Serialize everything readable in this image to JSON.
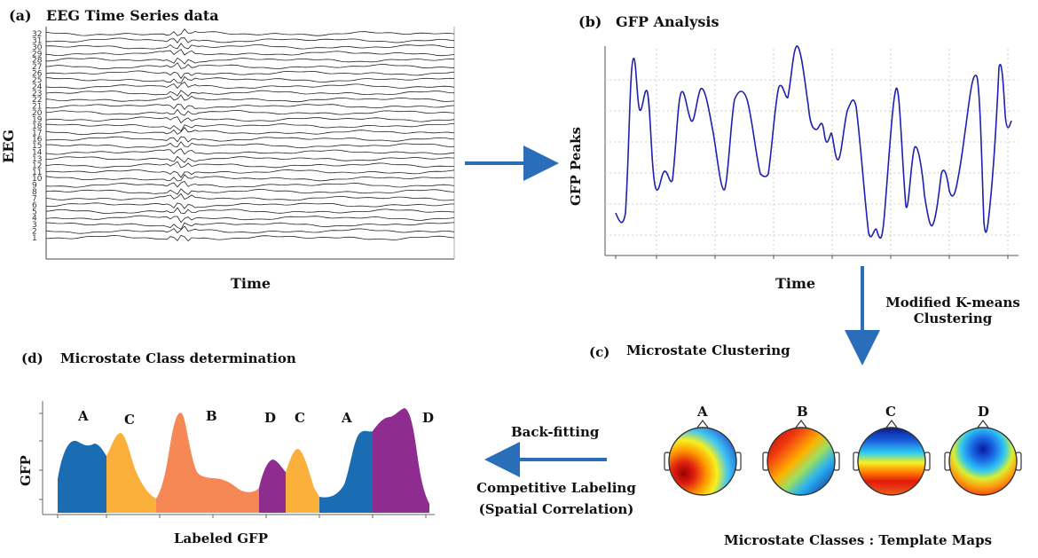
{
  "panel_a": {
    "label": "(a)",
    "title": "EEG Time Series data",
    "ylabel": "EEG",
    "xlabel": "Time",
    "channels": [
      "32",
      "31",
      "30",
      "29",
      "28",
      "27",
      "26",
      "25",
      "24",
      "23",
      "22",
      "21",
      "20",
      "19",
      "18",
      "17",
      "16",
      "15",
      "14",
      "13",
      "12",
      "11",
      "10",
      "9",
      "8",
      "7",
      "6",
      "5",
      "4",
      "3",
      "2",
      "1"
    ]
  },
  "panel_b": {
    "label": "(b)",
    "title": "GFP  Analysis",
    "ylabel": "GFP Peaks",
    "xlabel": "Time"
  },
  "transition_bc": {
    "line1": "Modified K-means",
    "line2": "Clustering"
  },
  "panel_c": {
    "label": "(c)",
    "title": "Microstate Clustering",
    "caption": "Microstate Classes : Template Maps",
    "maps": [
      {
        "name": "A",
        "icon": "topomap-a-icon"
      },
      {
        "name": "B",
        "icon": "topomap-b-icon"
      },
      {
        "name": "C",
        "icon": "topomap-c-icon"
      },
      {
        "name": "D",
        "icon": "topomap-d-icon"
      }
    ]
  },
  "transition_cd": {
    "top": "Back-fitting",
    "line1": "Competitive Labeling",
    "line2": "(Spatial Correlation)"
  },
  "panel_d": {
    "label": "(d)",
    "title": "Microstate Class determination",
    "ylabel": "GFP",
    "xlabel": "Labeled GFP",
    "segment_labels": [
      "A",
      "C",
      "B",
      "D",
      "C",
      "A",
      "D"
    ]
  },
  "colors": {
    "arrow": "#2a6db8",
    "trace": "#1f1fb0",
    "class_A": "#1a6db3",
    "class_B": "#f58855",
    "class_C": "#fbb03b",
    "class_D": "#8e2c8f"
  }
}
